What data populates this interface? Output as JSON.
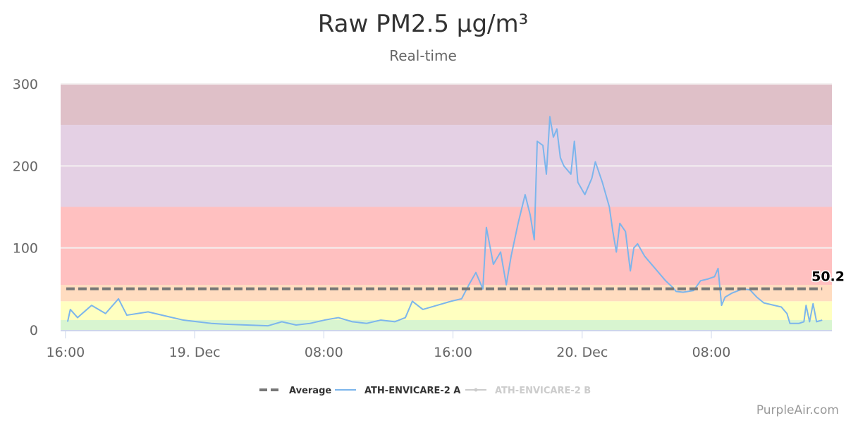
{
  "chart_data": {
    "type": "line",
    "title": "Raw PM2.5 µg/m³",
    "subtitle": "Real-time",
    "xlim": [
      "Dec 18 15:42",
      "Dec 20 15:28"
    ],
    "ylim": [
      0,
      300
    ],
    "y_ticks": [
      0,
      100,
      200,
      300
    ],
    "x_ticks": [
      {
        "t": "Dec 18 16:00",
        "label": "16:00"
      },
      {
        "t": "Dec 19 00:00",
        "label": "19. Dec"
      },
      {
        "t": "Dec 19 08:00",
        "label": "08:00"
      },
      {
        "t": "Dec 19 16:00",
        "label": "16:00"
      },
      {
        "t": "Dec 20 00:00",
        "label": "20. Dec"
      },
      {
        "t": "Dec 20 08:00",
        "label": "08:00"
      }
    ],
    "grid": true,
    "bands": [
      {
        "from": 0,
        "to": 12,
        "color": "#d8f5d0"
      },
      {
        "from": 12,
        "to": 35,
        "color": "#ffffc0"
      },
      {
        "from": 35,
        "to": 55,
        "color": "#ffdcc0"
      },
      {
        "from": 55,
        "to": 150,
        "color": "#ffc0c0"
      },
      {
        "from": 150,
        "to": 250,
        "color": "#e4d0e4"
      },
      {
        "from": 250,
        "to": 300,
        "color": "#dfc0c8"
      }
    ],
    "average": {
      "name": "Average",
      "value": 50.2,
      "label": "50.2",
      "color": "#777777"
    },
    "legend_position": "bottom",
    "series": [
      {
        "name": "ATH-ENVICARE-2 A",
        "color": "#7cb5ec",
        "visible": true,
        "points": [
          [
            "Dec 18 16:08",
            10
          ],
          [
            "Dec 18 16:18",
            25
          ],
          [
            "Dec 18 16:45",
            15
          ],
          [
            "Dec 18 17:37",
            30
          ],
          [
            "Dec 18 18:29",
            20
          ],
          [
            "Dec 18 19:17",
            38
          ],
          [
            "Dec 18 19:48",
            18
          ],
          [
            "Dec 18 21:07",
            22
          ],
          [
            "Dec 18 22:25",
            16
          ],
          [
            "Dec 18 23:18",
            12
          ],
          [
            "Dec 19 00:10",
            10
          ],
          [
            "Dec 19 01:02",
            8
          ],
          [
            "Dec 19 01:55",
            7
          ],
          [
            "Dec 19 03:13",
            6
          ],
          [
            "Dec 19 04:32",
            5
          ],
          [
            "Dec 19 05:24",
            10
          ],
          [
            "Dec 19 06:17",
            6
          ],
          [
            "Dec 19 07:09",
            8
          ],
          [
            "Dec 19 08:02",
            12
          ],
          [
            "Dec 19 08:54",
            15
          ],
          [
            "Dec 19 09:46",
            10
          ],
          [
            "Dec 19 10:39",
            8
          ],
          [
            "Dec 19 11:31",
            12
          ],
          [
            "Dec 19 12:24",
            10
          ],
          [
            "Dec 19 13:03",
            15
          ],
          [
            "Dec 19 13:29",
            35
          ],
          [
            "Dec 19 14:08",
            25
          ],
          [
            "Dec 19 15:01",
            30
          ],
          [
            "Dec 19 15:53",
            35
          ],
          [
            "Dec 19 16:32",
            38
          ],
          [
            "Dec 19 16:59",
            55
          ],
          [
            "Dec 19 17:25",
            70
          ],
          [
            "Dec 19 17:51",
            50
          ],
          [
            "Dec 19 18:04",
            125
          ],
          [
            "Dec 19 18:30",
            80
          ],
          [
            "Dec 19 18:57",
            95
          ],
          [
            "Dec 19 19:18",
            55
          ],
          [
            "Dec 19 19:36",
            90
          ],
          [
            "Dec 19 20:02",
            130
          ],
          [
            "Dec 19 20:28",
            165
          ],
          [
            "Dec 19 20:47",
            140
          ],
          [
            "Dec 19 21:02",
            110
          ],
          [
            "Dec 19 21:13",
            230
          ],
          [
            "Dec 19 21:34",
            225
          ],
          [
            "Dec 19 21:47",
            190
          ],
          [
            "Dec 19 22:00",
            260
          ],
          [
            "Dec 19 22:13",
            235
          ],
          [
            "Dec 19 22:26",
            245
          ],
          [
            "Dec 19 22:39",
            210
          ],
          [
            "Dec 19 22:52",
            200
          ],
          [
            "Dec 19 23:18",
            190
          ],
          [
            "Dec 19 23:31",
            230
          ],
          [
            "Dec 19 23:44",
            180
          ],
          [
            "Dec 20 00:10",
            165
          ],
          [
            "Dec 20 00:36",
            185
          ],
          [
            "Dec 20 00:49",
            205
          ],
          [
            "Dec 20 01:15",
            180
          ],
          [
            "Dec 20 01:41",
            150
          ],
          [
            "Dec 20 01:54",
            120
          ],
          [
            "Dec 20 02:07",
            95
          ],
          [
            "Dec 20 02:20",
            130
          ],
          [
            "Dec 20 02:41",
            120
          ],
          [
            "Dec 20 02:59",
            72
          ],
          [
            "Dec 20 03:12",
            100
          ],
          [
            "Dec 20 03:26",
            105
          ],
          [
            "Dec 20 03:52",
            90
          ],
          [
            "Dec 20 04:18",
            80
          ],
          [
            "Dec 20 04:44",
            70
          ],
          [
            "Dec 20 05:10",
            60
          ],
          [
            "Dec 20 05:36",
            52
          ],
          [
            "Dec 20 05:49",
            47
          ],
          [
            "Dec 20 06:15",
            46
          ],
          [
            "Dec 20 06:54",
            48
          ],
          [
            "Dec 20 07:20",
            60
          ],
          [
            "Dec 20 07:46",
            62
          ],
          [
            "Dec 20 08:12",
            65
          ],
          [
            "Dec 20 08:25",
            75
          ],
          [
            "Dec 20 08:38",
            30
          ],
          [
            "Dec 20 08:51",
            40
          ],
          [
            "Dec 20 09:17",
            45
          ],
          [
            "Dec 20 09:56",
            50
          ],
          [
            "Dec 20 10:23",
            49
          ],
          [
            "Dec 20 10:49",
            40
          ],
          [
            "Dec 20 11:15",
            33
          ],
          [
            "Dec 20 11:54",
            30
          ],
          [
            "Dec 20 12:20",
            28
          ],
          [
            "Dec 20 12:41",
            20
          ],
          [
            "Dec 20 12:52",
            8
          ],
          [
            "Dec 20 13:26",
            8
          ],
          [
            "Dec 20 13:44",
            10
          ],
          [
            "Dec 20 13:52",
            30
          ],
          [
            "Dec 20 14:05",
            10
          ],
          [
            "Dec 20 14:18",
            32
          ],
          [
            "Dec 20 14:31",
            10
          ],
          [
            "Dec 20 14:52",
            12
          ]
        ]
      },
      {
        "name": "ATH-ENVICARE-2 B",
        "color": "#cccccc",
        "visible": false,
        "points": []
      }
    ]
  },
  "credit": "PurpleAir.com"
}
